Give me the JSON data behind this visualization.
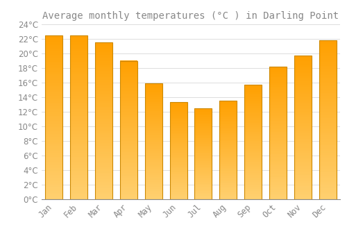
{
  "title": "Average monthly temperatures (°C ) in Darling Point",
  "months": [
    "Jan",
    "Feb",
    "Mar",
    "Apr",
    "May",
    "Jun",
    "Jul",
    "Aug",
    "Sep",
    "Oct",
    "Nov",
    "Dec"
  ],
  "values": [
    22.5,
    22.5,
    21.5,
    19.0,
    15.9,
    13.3,
    12.5,
    13.5,
    15.7,
    18.2,
    19.7,
    21.8
  ],
  "bar_color_top": "#FFD070",
  "bar_color_bottom": "#FFA000",
  "bar_color_edge": "#CC8800",
  "background_color": "#FFFFFF",
  "grid_color": "#DDDDDD",
  "text_color": "#888888",
  "ylim": [
    0,
    24
  ],
  "ytick_step": 2,
  "title_fontsize": 10,
  "tick_fontsize": 8.5
}
